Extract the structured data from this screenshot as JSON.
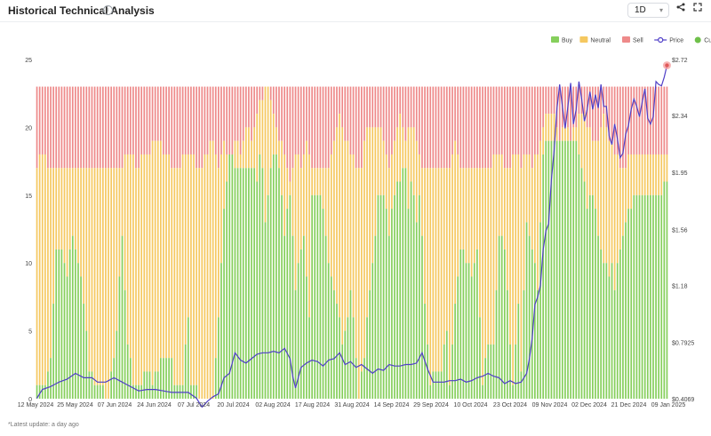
{
  "header": {
    "title": "Historical Technical Analysis",
    "info_icon": "info-icon",
    "timeframe": "1D",
    "share_icon": "share-icon",
    "expand_icon": "expand-icon"
  },
  "footnote": "*Latest update: a day ago",
  "chart_data": {
    "type": "bar",
    "stacked": true,
    "legend": [
      {
        "name": "Buy",
        "color": "#86cf5c",
        "kind": "box"
      },
      {
        "name": "Neutral",
        "color": "#f5c860",
        "kind": "box"
      },
      {
        "name": "Sell",
        "color": "#ee8a8a",
        "kind": "box"
      },
      {
        "name": "Price",
        "color": "#4f3fc7",
        "kind": "line"
      },
      {
        "name": "Current Price",
        "color": "#6fc04a",
        "kind": "dot"
      }
    ],
    "legend_position": "top-right",
    "left_axis": {
      "min": 0,
      "max": 25,
      "ticks": [
        0,
        5,
        10,
        15,
        20,
        25
      ]
    },
    "right_axis": {
      "min": 0.4069,
      "max": 2.72,
      "tick_values": [
        0.4069,
        0.7925,
        1.18,
        1.56,
        1.95,
        2.34,
        2.72
      ],
      "tick_labels": [
        "$0.4069",
        "$0.7925",
        "$1.18",
        "$1.56",
        "$1.95",
        "$2.34",
        "$2.72"
      ]
    },
    "x_tick_labels": [
      "12 May 2024",
      "25 May 2024",
      "07 Jun 2024",
      "24 Jun 2024",
      "07 Jul 2024",
      "20 Jul 2024",
      "02 Aug 2024",
      "17 Aug 2024",
      "31 Aug 2024",
      "14 Sep 2024",
      "29 Sep 2024",
      "10 Oct 2024",
      "23 Oct 2024",
      "09 Nov 2024",
      "02 Dec 2024",
      "21 Dec 2024",
      "09 Jan 2025"
    ],
    "grid": false,
    "total_signals": 23,
    "buy_anchors": [
      [
        0,
        1
      ],
      [
        3,
        1
      ],
      [
        5,
        3
      ],
      [
        7,
        11
      ],
      [
        9,
        11
      ],
      [
        11,
        9
      ],
      [
        13,
        12
      ],
      [
        15,
        10
      ],
      [
        17,
        7
      ],
      [
        19,
        2
      ],
      [
        22,
        1
      ],
      [
        26,
        0
      ],
      [
        29,
        5
      ],
      [
        31,
        12
      ],
      [
        33,
        4
      ],
      [
        35,
        1
      ],
      [
        37,
        1
      ],
      [
        40,
        2
      ],
      [
        42,
        1
      ],
      [
        45,
        3
      ],
      [
        49,
        3
      ],
      [
        50,
        1
      ],
      [
        53,
        1
      ],
      [
        55,
        6
      ],
      [
        56,
        1
      ],
      [
        60,
        0
      ],
      [
        62,
        0
      ],
      [
        64,
        0
      ],
      [
        66,
        6
      ],
      [
        67,
        10
      ],
      [
        68,
        14
      ],
      [
        70,
        18
      ],
      [
        72,
        17
      ],
      [
        74,
        17
      ],
      [
        76,
        17
      ],
      [
        78,
        17
      ],
      [
        80,
        16
      ],
      [
        81,
        18
      ],
      [
        82,
        17
      ],
      [
        83,
        13
      ],
      [
        84,
        15
      ],
      [
        86,
        18
      ],
      [
        88,
        17
      ],
      [
        90,
        12
      ],
      [
        91,
        14
      ],
      [
        92,
        15
      ],
      [
        94,
        8
      ],
      [
        96,
        11
      ],
      [
        97,
        12
      ],
      [
        99,
        6
      ],
      [
        100,
        15
      ],
      [
        102,
        15
      ],
      [
        104,
        14
      ],
      [
        106,
        10
      ],
      [
        108,
        8
      ],
      [
        110,
        6
      ],
      [
        111,
        4
      ],
      [
        113,
        6
      ],
      [
        114,
        8
      ],
      [
        116,
        3
      ],
      [
        117,
        0
      ],
      [
        119,
        3
      ],
      [
        121,
        8
      ],
      [
        123,
        12
      ],
      [
        124,
        15
      ],
      [
        126,
        15
      ],
      [
        128,
        12
      ],
      [
        130,
        15
      ],
      [
        132,
        16
      ],
      [
        134,
        17
      ],
      [
        135,
        14
      ],
      [
        136,
        16
      ],
      [
        138,
        13
      ],
      [
        139,
        15
      ],
      [
        140,
        12
      ],
      [
        141,
        7
      ],
      [
        143,
        1
      ],
      [
        145,
        2
      ],
      [
        147,
        2
      ],
      [
        149,
        5
      ],
      [
        150,
        1
      ],
      [
        152,
        7
      ],
      [
        154,
        11
      ],
      [
        156,
        10
      ],
      [
        158,
        9
      ],
      [
        160,
        11
      ],
      [
        162,
        1
      ],
      [
        164,
        4
      ],
      [
        166,
        4
      ],
      [
        168,
        12
      ],
      [
        170,
        11
      ],
      [
        172,
        4
      ],
      [
        173,
        1
      ],
      [
        175,
        7
      ],
      [
        176,
        2
      ],
      [
        178,
        13
      ],
      [
        180,
        11
      ],
      [
        182,
        8
      ],
      [
        184,
        18
      ],
      [
        186,
        19
      ],
      [
        188,
        19
      ],
      [
        190,
        19
      ],
      [
        192,
        19
      ],
      [
        194,
        19
      ],
      [
        196,
        19
      ],
      [
        198,
        17
      ],
      [
        200,
        14
      ],
      [
        202,
        15
      ],
      [
        204,
        12
      ],
      [
        206,
        10
      ],
      [
        208,
        9
      ],
      [
        209,
        10
      ],
      [
        210,
        8
      ],
      [
        212,
        11
      ],
      [
        214,
        13
      ],
      [
        216,
        14
      ],
      [
        218,
        15
      ],
      [
        220,
        15
      ]
    ],
    "neutral_anchors": [
      [
        0,
        17
      ],
      [
        2,
        18
      ],
      [
        4,
        17
      ],
      [
        10,
        17
      ],
      [
        30,
        17
      ],
      [
        34,
        18
      ],
      [
        36,
        17
      ],
      [
        44,
        19
      ],
      [
        50,
        17
      ],
      [
        55,
        18
      ],
      [
        60,
        17
      ],
      [
        64,
        19
      ],
      [
        66,
        17
      ],
      [
        68,
        19
      ],
      [
        70,
        17
      ],
      [
        72,
        19
      ],
      [
        74,
        18
      ],
      [
        76,
        20
      ],
      [
        78,
        19
      ],
      [
        80,
        21
      ],
      [
        82,
        22
      ],
      [
        84,
        23
      ],
      [
        86,
        21
      ],
      [
        88,
        19
      ],
      [
        90,
        18
      ],
      [
        92,
        16
      ],
      [
        94,
        18
      ],
      [
        96,
        17
      ],
      [
        98,
        19
      ],
      [
        100,
        17
      ],
      [
        104,
        17
      ],
      [
        106,
        17
      ],
      [
        108,
        19
      ],
      [
        110,
        21
      ],
      [
        112,
        19
      ],
      [
        116,
        17
      ],
      [
        118,
        17
      ],
      [
        120,
        20
      ],
      [
        122,
        20
      ],
      [
        124,
        20
      ],
      [
        126,
        19
      ],
      [
        128,
        17
      ],
      [
        130,
        19
      ],
      [
        132,
        21
      ],
      [
        134,
        19
      ],
      [
        136,
        20
      ],
      [
        138,
        19
      ],
      [
        140,
        17
      ],
      [
        142,
        17
      ],
      [
        146,
        17
      ],
      [
        150,
        17
      ],
      [
        152,
        19
      ],
      [
        154,
        17
      ],
      [
        158,
        17
      ],
      [
        162,
        17
      ],
      [
        164,
        17
      ],
      [
        168,
        18
      ],
      [
        170,
        17
      ],
      [
        172,
        17
      ],
      [
        174,
        18
      ],
      [
        176,
        17
      ],
      [
        178,
        18
      ],
      [
        180,
        17
      ],
      [
        182,
        18
      ],
      [
        184,
        20
      ],
      [
        186,
        21
      ],
      [
        188,
        21
      ],
      [
        190,
        19
      ],
      [
        192,
        20
      ],
      [
        194,
        19
      ],
      [
        196,
        20
      ],
      [
        198,
        21
      ],
      [
        200,
        20
      ],
      [
        202,
        19
      ],
      [
        204,
        19
      ],
      [
        206,
        21
      ],
      [
        208,
        19
      ],
      [
        210,
        18
      ],
      [
        212,
        17
      ],
      [
        214,
        17
      ],
      [
        216,
        18
      ],
      [
        218,
        18
      ],
      [
        220,
        18
      ]
    ],
    "price_anchors": [
      [
        0,
        0.41
      ],
      [
        2,
        0.47
      ],
      [
        5,
        0.49
      ],
      [
        8,
        0.52
      ],
      [
        11,
        0.54
      ],
      [
        14,
        0.58
      ],
      [
        17,
        0.55
      ],
      [
        20,
        0.55
      ],
      [
        22,
        0.52
      ],
      [
        25,
        0.52
      ],
      [
        28,
        0.55
      ],
      [
        31,
        0.52
      ],
      [
        34,
        0.49
      ],
      [
        37,
        0.46
      ],
      [
        40,
        0.47
      ],
      [
        43,
        0.47
      ],
      [
        46,
        0.46
      ],
      [
        49,
        0.45
      ],
      [
        52,
        0.45
      ],
      [
        55,
        0.45
      ],
      [
        58,
        0.41
      ],
      [
        60,
        0.35
      ],
      [
        62,
        0.39
      ],
      [
        64,
        0.42
      ],
      [
        66,
        0.44
      ],
      [
        68,
        0.55
      ],
      [
        70,
        0.58
      ],
      [
        72,
        0.72
      ],
      [
        74,
        0.67
      ],
      [
        76,
        0.65
      ],
      [
        78,
        0.68
      ],
      [
        80,
        0.71
      ],
      [
        82,
        0.72
      ],
      [
        84,
        0.72
      ],
      [
        86,
        0.73
      ],
      [
        88,
        0.72
      ],
      [
        90,
        0.75
      ],
      [
        92,
        0.68
      ],
      [
        93,
        0.56
      ],
      [
        94,
        0.48
      ],
      [
        96,
        0.62
      ],
      [
        98,
        0.65
      ],
      [
        100,
        0.67
      ],
      [
        102,
        0.66
      ],
      [
        104,
        0.63
      ],
      [
        106,
        0.67
      ],
      [
        108,
        0.68
      ],
      [
        110,
        0.72
      ],
      [
        112,
        0.64
      ],
      [
        114,
        0.66
      ],
      [
        116,
        0.62
      ],
      [
        118,
        0.64
      ],
      [
        120,
        0.61
      ],
      [
        122,
        0.58
      ],
      [
        124,
        0.61
      ],
      [
        126,
        0.6
      ],
      [
        128,
        0.64
      ],
      [
        130,
        0.63
      ],
      [
        132,
        0.63
      ],
      [
        134,
        0.64
      ],
      [
        136,
        0.64
      ],
      [
        138,
        0.65
      ],
      [
        140,
        0.72
      ],
      [
        142,
        0.61
      ],
      [
        144,
        0.52
      ],
      [
        146,
        0.52
      ],
      [
        148,
        0.52
      ],
      [
        150,
        0.53
      ],
      [
        152,
        0.53
      ],
      [
        154,
        0.54
      ],
      [
        156,
        0.52
      ],
      [
        158,
        0.53
      ],
      [
        160,
        0.55
      ],
      [
        162,
        0.56
      ],
      [
        164,
        0.58
      ],
      [
        166,
        0.56
      ],
      [
        168,
        0.55
      ],
      [
        170,
        0.51
      ],
      [
        172,
        0.53
      ],
      [
        174,
        0.51
      ],
      [
        176,
        0.52
      ],
      [
        177,
        0.55
      ],
      [
        178,
        0.58
      ],
      [
        179,
        0.68
      ],
      [
        180,
        0.82
      ],
      [
        181,
        1.05
      ],
      [
        182,
        1.1
      ],
      [
        183,
        1.18
      ],
      [
        184,
        1.42
      ],
      [
        185,
        1.55
      ],
      [
        186,
        1.6
      ],
      [
        187,
        1.9
      ],
      [
        188,
        2.1
      ],
      [
        189,
        2.38
      ],
      [
        190,
        2.55
      ],
      [
        191,
        2.4
      ],
      [
        192,
        2.25
      ],
      [
        193,
        2.4
      ],
      [
        194,
        2.56
      ],
      [
        195,
        2.28
      ],
      [
        196,
        2.38
      ],
      [
        197,
        2.57
      ],
      [
        198,
        2.45
      ],
      [
        199,
        2.3
      ],
      [
        200,
        2.38
      ],
      [
        201,
        2.5
      ],
      [
        202,
        2.38
      ],
      [
        203,
        2.48
      ],
      [
        204,
        2.39
      ],
      [
        205,
        2.55
      ],
      [
        206,
        2.4
      ],
      [
        207,
        2.4
      ],
      [
        208,
        2.2
      ],
      [
        209,
        2.14
      ],
      [
        210,
        2.28
      ],
      [
        211,
        2.18
      ],
      [
        212,
        2.05
      ],
      [
        213,
        2.08
      ],
      [
        214,
        2.21
      ],
      [
        215,
        2.27
      ],
      [
        216,
        2.38
      ],
      [
        217,
        2.45
      ],
      [
        218,
        2.4
      ],
      [
        219,
        2.33
      ],
      [
        220,
        2.43
      ],
      [
        221,
        2.52
      ],
      [
        222,
        2.32
      ],
      [
        223,
        2.28
      ],
      [
        224,
        2.33
      ],
      [
        225,
        2.57
      ],
      [
        226,
        2.55
      ],
      [
        227,
        2.54
      ],
      [
        228,
        2.6
      ],
      [
        229,
        2.68
      ]
    ],
    "bar_count": 230,
    "current_price_value": 2.68
  }
}
